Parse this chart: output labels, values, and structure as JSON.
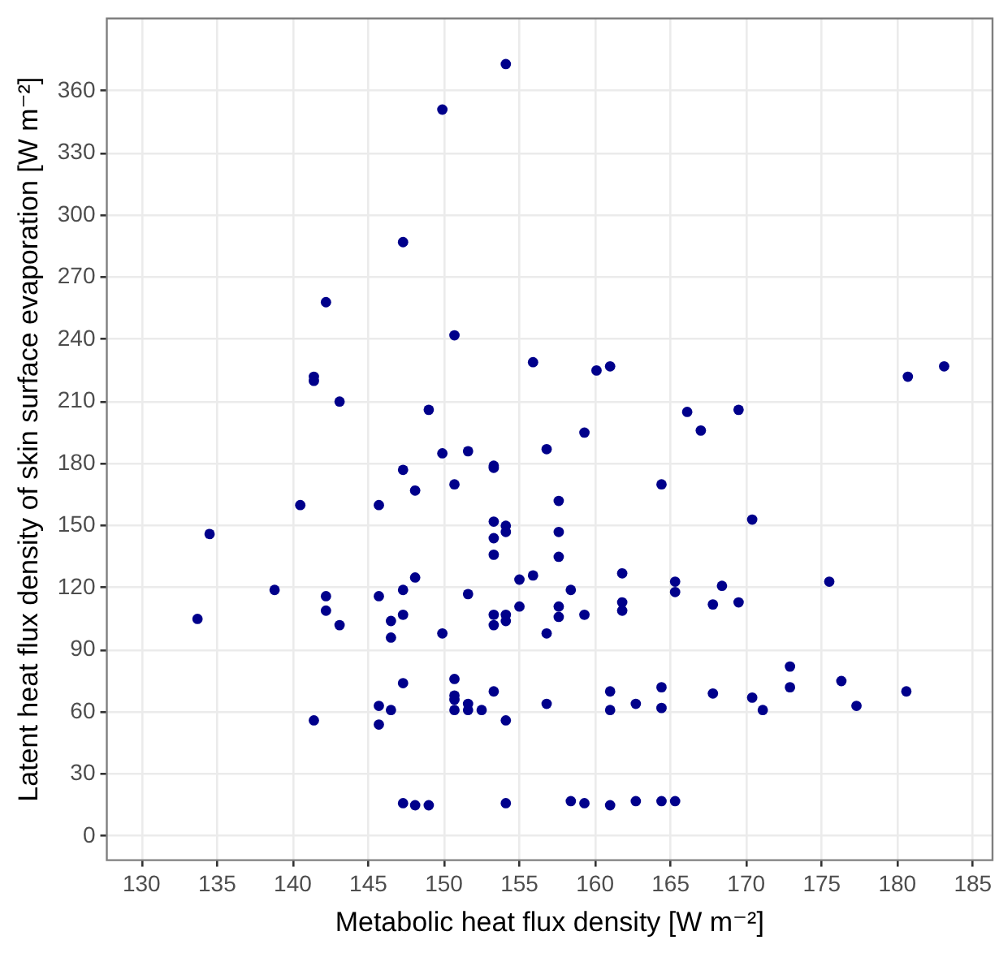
{
  "chart_data": {
    "type": "scatter",
    "xlabel": "Metabolic heat flux density [W m⁻²]",
    "ylabel": "Latent heat flux density of skin surface evaporation [W m⁻²]",
    "xlim": [
      127.7,
      186.3
    ],
    "ylim": [
      -11.5,
      395
    ],
    "xticks": [
      130,
      135,
      140,
      145,
      150,
      155,
      160,
      165,
      170,
      175,
      180,
      185
    ],
    "yticks": [
      0,
      30,
      60,
      90,
      120,
      150,
      180,
      210,
      240,
      270,
      300,
      330,
      360
    ],
    "grid": true,
    "marker": "circle",
    "legend": false,
    "series": [
      {
        "color": "#00008b",
        "x": [
          154.1,
          149.9,
          147.3,
          142.2,
          150.7,
          155.9,
          141.4,
          141.4,
          143.1,
          149.0,
          160.1,
          161.0,
          159.3,
          166.1,
          167.0,
          169.5,
          180.7,
          183.1,
          149.9,
          151.6,
          156.8,
          147.3,
          153.3,
          153.3,
          148.1,
          150.7,
          140.5,
          145.7,
          157.6,
          153.3,
          154.1,
          154.1,
          157.6,
          134.5,
          153.3,
          153.3,
          157.6,
          148.1,
          155.0,
          155.9,
          138.8,
          142.2,
          142.2,
          145.7,
          147.3,
          151.6,
          155.0,
          157.6,
          147.3,
          153.3,
          154.1,
          154.1,
          153.3,
          157.6,
          133.7,
          143.1,
          146.5,
          146.5,
          149.9,
          156.8,
          147.3,
          150.7,
          150.7,
          150.7,
          153.3,
          156.8,
          145.7,
          146.5,
          150.7,
          151.6,
          151.6,
          152.5,
          154.1,
          141.4,
          145.7,
          147.3,
          148.1,
          149.0,
          154.1,
          164.4,
          170.4,
          161.8,
          165.3,
          165.3,
          158.4,
          168.4,
          175.5,
          161.8,
          161.8,
          167.8,
          169.5,
          159.3,
          172.9,
          172.9,
          176.3,
          180.6,
          161.0,
          164.4,
          167.8,
          170.4,
          161.0,
          162.7,
          164.4,
          171.1,
          177.3,
          158.4,
          159.3,
          161.0,
          162.7,
          164.4,
          165.3
        ],
        "values": [
          373,
          351,
          287,
          258,
          242,
          229,
          222,
          220,
          210,
          206,
          225,
          227,
          195,
          205,
          196,
          206,
          222,
          227,
          185,
          186,
          187,
          177,
          179,
          178,
          167,
          170,
          160,
          160,
          162,
          152,
          150,
          147,
          147,
          146,
          144,
          136,
          135,
          125,
          124,
          126,
          119,
          116,
          109,
          116,
          119,
          117,
          111,
          111,
          107,
          107,
          107,
          104,
          102,
          106,
          105,
          102,
          104,
          96,
          98,
          98,
          74,
          76,
          68,
          66,
          70,
          64,
          63,
          61,
          61,
          64,
          61,
          61,
          56,
          56,
          54,
          16,
          15,
          15,
          16,
          170,
          153,
          127,
          123,
          118,
          119,
          121,
          123,
          113,
          109,
          112,
          113,
          107,
          82,
          72,
          75,
          70,
          70,
          72,
          69,
          67,
          61,
          64,
          62,
          61,
          63,
          17,
          16,
          15,
          17,
          17,
          17
        ]
      }
    ]
  }
}
